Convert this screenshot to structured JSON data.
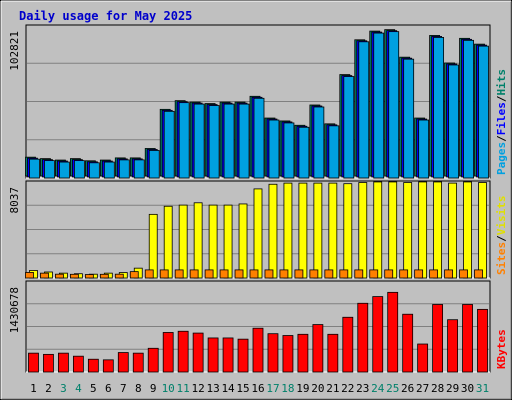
{
  "chart_data": [
    {
      "panel": "hits-files-pages",
      "type": "bar",
      "title": "Daily usage for May 2025",
      "categories": [
        "1",
        "2",
        "3",
        "4",
        "5",
        "6",
        "7",
        "8",
        "9",
        "10",
        "11",
        "12",
        "13",
        "14",
        "15",
        "16",
        "17",
        "18",
        "19",
        "20",
        "21",
        "22",
        "23",
        "24",
        "25",
        "26",
        "27",
        "28",
        "29",
        "30",
        "31"
      ],
      "weekend_days": [
        "3",
        "4",
        "10",
        "11",
        "17",
        "18",
        "24",
        "25",
        "31"
      ],
      "ymax_label": "102821",
      "ylim": [
        0,
        102821
      ],
      "grid": true,
      "side_label": [
        {
          "text": "Pages",
          "color": "#00a0e0"
        },
        {
          "text": "/",
          "color": "#000000"
        },
        {
          "text": "Files",
          "color": "#0000ff"
        },
        {
          "text": "/",
          "color": "#000000"
        },
        {
          "text": "Hits",
          "color": "#00806a"
        }
      ],
      "series": [
        {
          "name": "Hits",
          "color": "#00806a",
          "values": [
            13000,
            12000,
            11000,
            12000,
            10500,
            11000,
            12500,
            12500,
            19000,
            46000,
            52000,
            51000,
            50000,
            51000,
            51000,
            55000,
            40000,
            38000,
            35000,
            49000,
            36000,
            70000,
            94000,
            100000,
            101000,
            82000,
            40000,
            97000,
            78000,
            95000,
            91000
          ]
        },
        {
          "name": "Files",
          "color": "#0000ff",
          "values": [
            13000,
            12000,
            11000,
            12000,
            10500,
            11000,
            12500,
            12500,
            19000,
            46000,
            52000,
            51000,
            50000,
            51000,
            51000,
            55000,
            40000,
            38000,
            35000,
            49000,
            36000,
            70000,
            94000,
            100000,
            101000,
            82000,
            40000,
            97000,
            78000,
            95000,
            91000
          ]
        },
        {
          "name": "Pages",
          "color": "#00a0e0",
          "values": [
            13000,
            12000,
            11000,
            12000,
            10500,
            11000,
            12500,
            12500,
            19000,
            46000,
            52000,
            51000,
            50000,
            51000,
            51000,
            55000,
            40000,
            38000,
            35000,
            49000,
            36000,
            70000,
            94000,
            100000,
            101000,
            82000,
            40000,
            97000,
            78000,
            95000,
            91000
          ]
        }
      ]
    },
    {
      "panel": "visits-sites",
      "type": "bar",
      "categories": [
        "1",
        "2",
        "3",
        "4",
        "5",
        "6",
        "7",
        "8",
        "9",
        "10",
        "11",
        "12",
        "13",
        "14",
        "15",
        "16",
        "17",
        "18",
        "19",
        "20",
        "21",
        "22",
        "23",
        "24",
        "25",
        "26",
        "27",
        "28",
        "29",
        "30",
        "31"
      ],
      "ymax_label": "8037",
      "ylim": [
        0,
        8037
      ],
      "grid": true,
      "side_label": [
        {
          "text": "Sites",
          "color": "#ff8000"
        },
        {
          "text": "/",
          "color": "#000000"
        },
        {
          "text": "Visits",
          "color": "#e0e000"
        }
      ],
      "series": [
        {
          "name": "Visits",
          "color": "#ffff00",
          "values": [
            650,
            520,
            420,
            370,
            330,
            420,
            470,
            850,
            5500,
            6200,
            6300,
            6500,
            6300,
            6300,
            6400,
            7700,
            8100,
            8200,
            8200,
            8200,
            8200,
            8150,
            8250,
            8300,
            8300,
            8250,
            8300,
            8300,
            8200,
            8300,
            8250
          ]
        },
        {
          "name": "Sites",
          "color": "#ff8000",
          "values": [
            480,
            420,
            330,
            320,
            300,
            320,
            330,
            550,
            700,
            700,
            700,
            700,
            700,
            700,
            700,
            700,
            700,
            700,
            700,
            700,
            700,
            700,
            700,
            700,
            700,
            700,
            700,
            700,
            700,
            700,
            700
          ]
        }
      ]
    },
    {
      "panel": "kbytes",
      "type": "bar",
      "categories": [
        "1",
        "2",
        "3",
        "4",
        "5",
        "6",
        "7",
        "8",
        "9",
        "10",
        "11",
        "12",
        "13",
        "14",
        "15",
        "16",
        "17",
        "18",
        "19",
        "20",
        "21",
        "22",
        "23",
        "24",
        "25",
        "26",
        "27",
        "28",
        "29",
        "30",
        "31"
      ],
      "ymax_label": "1430678",
      "ylim": [
        0,
        1430678
      ],
      "grid": true,
      "side_label": [
        {
          "text": "KBytes",
          "color": "#ff0000"
        }
      ],
      "series": [
        {
          "name": "KBytes",
          "color": "#ff0000",
          "values": [
            310000,
            290000,
            310000,
            260000,
            210000,
            200000,
            320000,
            310000,
            390000,
            650000,
            670000,
            640000,
            560000,
            560000,
            540000,
            720000,
            630000,
            600000,
            620000,
            780000,
            620000,
            900000,
            1130000,
            1240000,
            1310000,
            950000,
            460000,
            1110000,
            860000,
            1110000,
            1030000
          ]
        }
      ]
    }
  ]
}
